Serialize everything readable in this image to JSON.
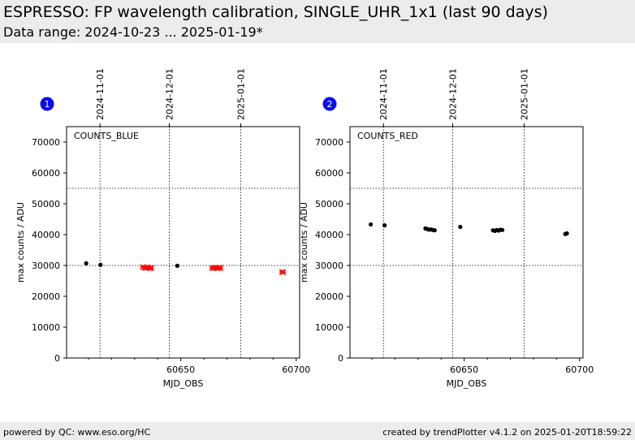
{
  "header": {
    "title": "ESPRESSO: FP wavelength calibration, SINGLE_UHR_1x1 (last 90 days)",
    "subtitle": "Data range: 2024-10-23 ... 2025-01-19*"
  },
  "footer": {
    "left": "powered by QC: www.eso.org/HC",
    "right": "created by trendPlotter v4.1.2 on 2025-01-20T18:59:22"
  },
  "chart_data": [
    {
      "type": "scatter",
      "badge": "1",
      "panel_label": "COUNTS_BLUE",
      "xlabel": "MJD_OBS",
      "ylabel": "max counts / ADU",
      "xlim": [
        60600.5,
        60701.5
      ],
      "ylim": [
        0,
        75000
      ],
      "xticks": [
        60650,
        60700
      ],
      "yticks": [
        0,
        10000,
        20000,
        30000,
        40000,
        50000,
        60000,
        70000
      ],
      "top_axis_dates": [
        {
          "label": "2024-11-01",
          "mjd": 60615
        },
        {
          "label": "2024-12-01",
          "mjd": 60645
        },
        {
          "label": "2025-01-01",
          "mjd": 60676
        }
      ],
      "reference_lines": [
        55000,
        30000
      ],
      "grid": "dates-dotted",
      "series": [
        {
          "marker": "dot",
          "color": "#000000",
          "x": [
            60609,
            60615.2,
            60648.5
          ],
          "y": [
            30700,
            30200,
            29900
          ]
        },
        {
          "marker": "x",
          "color": "#ff0000",
          "x": [
            60633.5,
            60634.2,
            60634.8,
            60635.4,
            60636.0,
            60636.6,
            60637.2,
            60663.5,
            60664.2,
            60664.8,
            60665.4,
            60666.0,
            60666.6,
            60667.2,
            60693.8,
            60694.4
          ],
          "y": [
            29500,
            29300,
            29200,
            29400,
            29300,
            29100,
            29200,
            29200,
            29100,
            29300,
            29200,
            29100,
            29300,
            29200,
            27900,
            27800
          ]
        }
      ]
    },
    {
      "type": "scatter",
      "badge": "2",
      "panel_label": "COUNTS_RED",
      "xlabel": "MJD_OBS",
      "ylabel": "max counts / ADU",
      "xlim": [
        60600.5,
        60701.5
      ],
      "ylim": [
        0,
        75000
      ],
      "xticks": [
        60650,
        60700
      ],
      "yticks": [
        0,
        10000,
        20000,
        30000,
        40000,
        50000,
        60000,
        70000
      ],
      "top_axis_dates": [
        {
          "label": "2024-11-01",
          "mjd": 60615
        },
        {
          "label": "2024-12-01",
          "mjd": 60645
        },
        {
          "label": "2025-01-01",
          "mjd": 60676
        }
      ],
      "reference_lines": [
        55000,
        30000
      ],
      "grid": "dates-dotted",
      "series": [
        {
          "marker": "dot",
          "color": "#000000",
          "x": [
            60609.5,
            60615.5,
            60633.2,
            60634.0,
            60634.8,
            60635.6,
            60636.4,
            60637.2,
            60648.3,
            60662.5,
            60663.3,
            60664.1,
            60664.9,
            60665.7,
            60666.5,
            60693.8,
            60694.5
          ],
          "y": [
            43300,
            43000,
            42000,
            41800,
            41600,
            41700,
            41500,
            41400,
            42500,
            41400,
            41200,
            41500,
            41300,
            41600,
            41500,
            40200,
            40400
          ]
        }
      ]
    }
  ]
}
